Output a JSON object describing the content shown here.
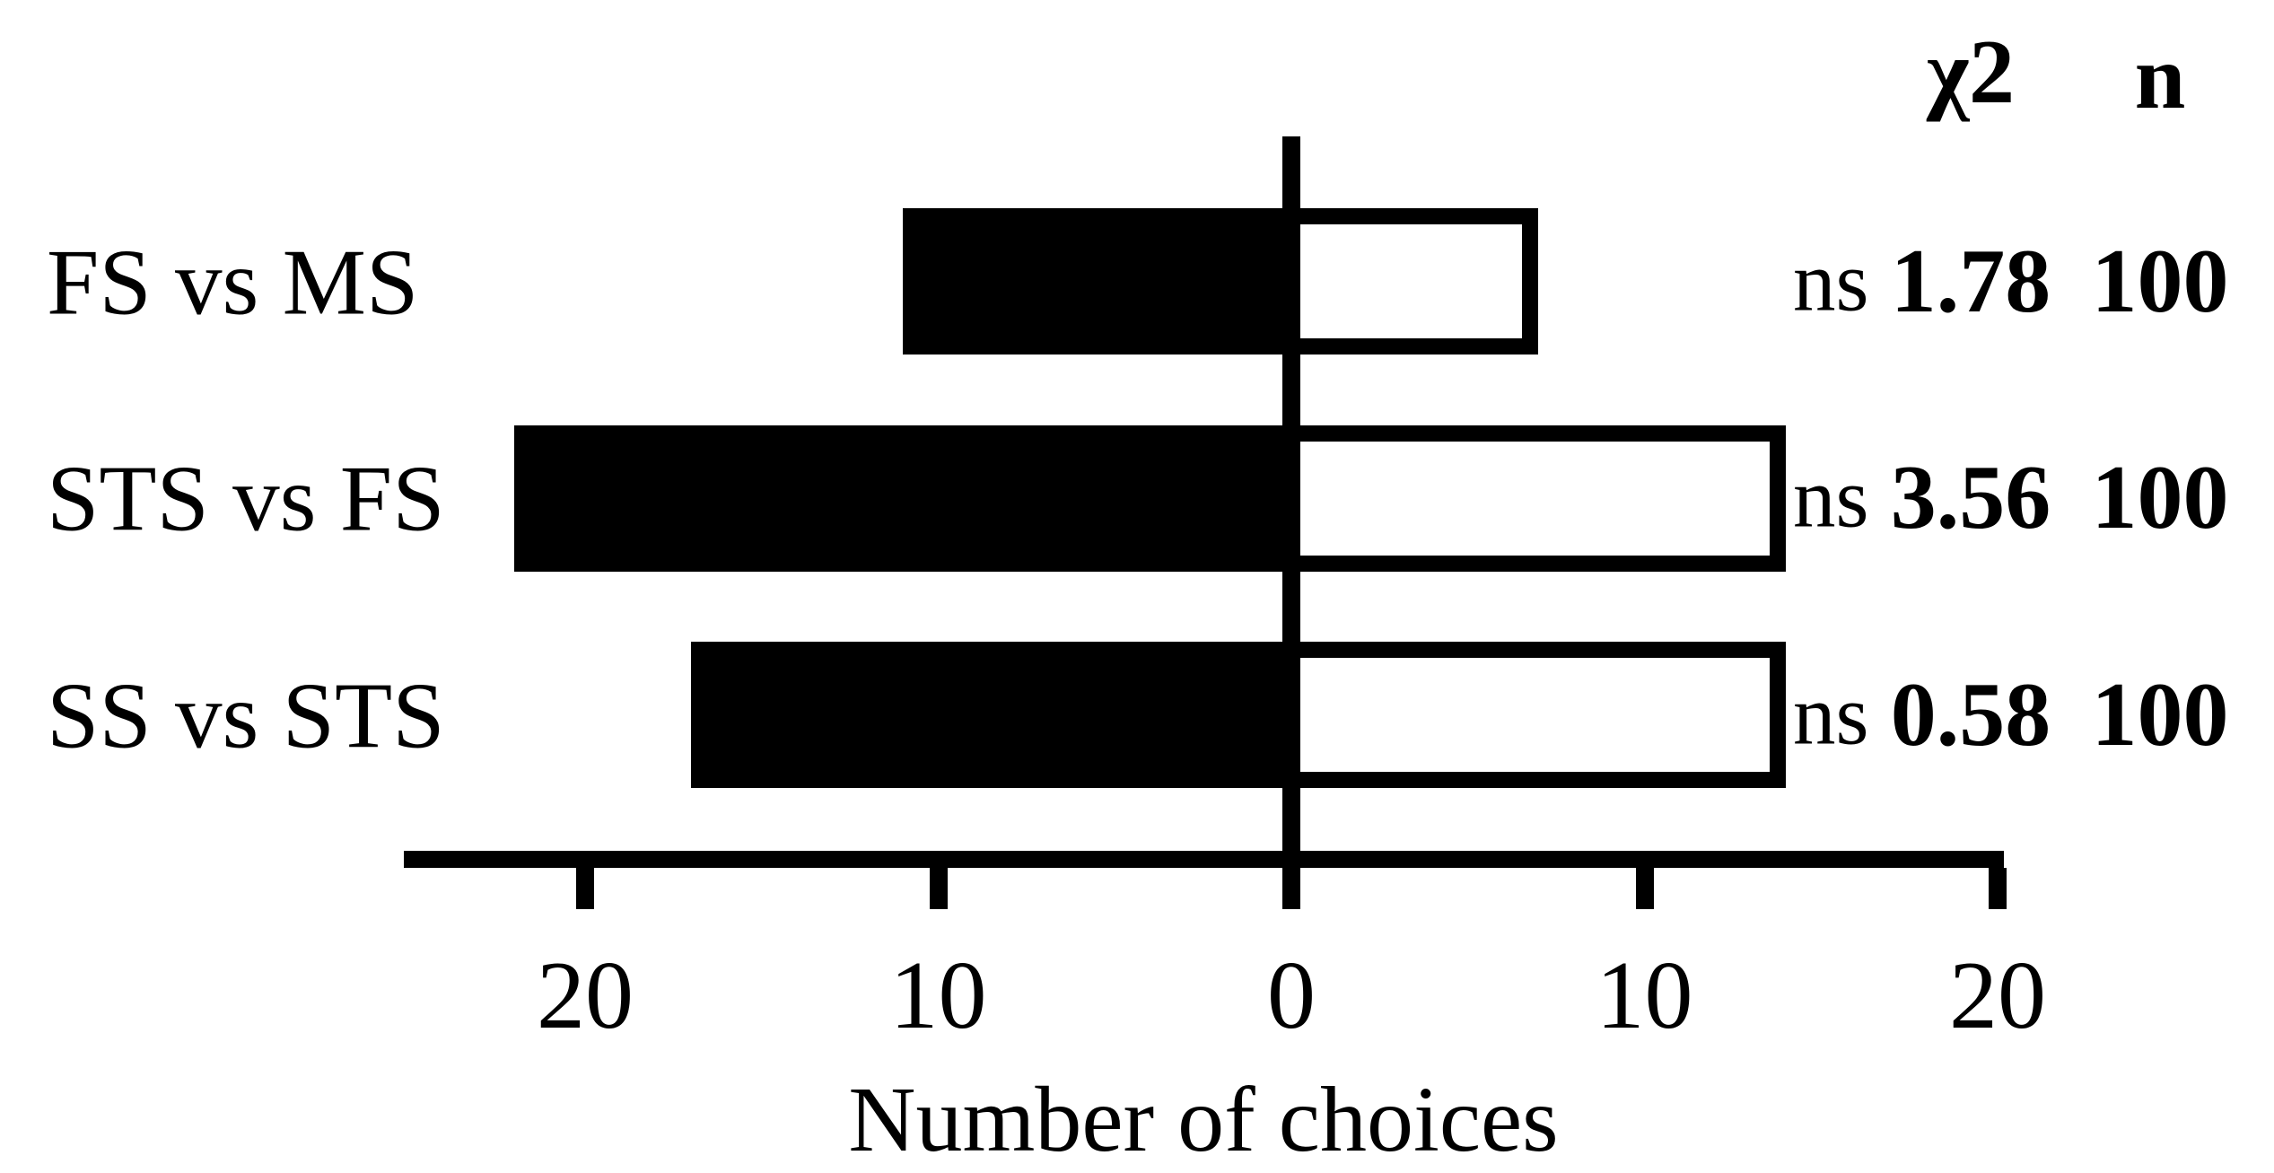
{
  "figure": {
    "background": "#ffffff",
    "ink": "#000000"
  },
  "chart_data": {
    "type": "bar",
    "variant": "horizontal-diverging",
    "title": "",
    "xlabel": "Number of choices",
    "categories": [
      "FS vs MS",
      "STS vs FS",
      "SS vs STS"
    ],
    "series": [
      {
        "name": "left-choice-filled",
        "side": "left",
        "fill": "#000000",
        "values": [
          11,
          22,
          17
        ]
      },
      {
        "name": "right-choice-outlined",
        "side": "right",
        "fill": "#ffffff",
        "stroke": "#000000",
        "values": [
          7,
          14,
          14
        ]
      }
    ],
    "x_ticks": [
      {
        "value": -20,
        "label": "20"
      },
      {
        "value": -10,
        "label": "10"
      },
      {
        "value": 0,
        "label": "0"
      },
      {
        "value": 10,
        "label": "10"
      },
      {
        "value": 20,
        "label": "20"
      }
    ],
    "axis_range": [
      -25,
      20
    ],
    "grid": false,
    "legend": "none",
    "stats_table": {
      "headers": {
        "chi2": "χ2",
        "n": "n"
      },
      "rows": [
        {
          "sig": "ns",
          "chi2": "1.78",
          "n": "100"
        },
        {
          "sig": "ns",
          "chi2": "3.56",
          "n": "100"
        },
        {
          "sig": "ns",
          "chi2": "0.58",
          "n": "100"
        }
      ]
    }
  }
}
